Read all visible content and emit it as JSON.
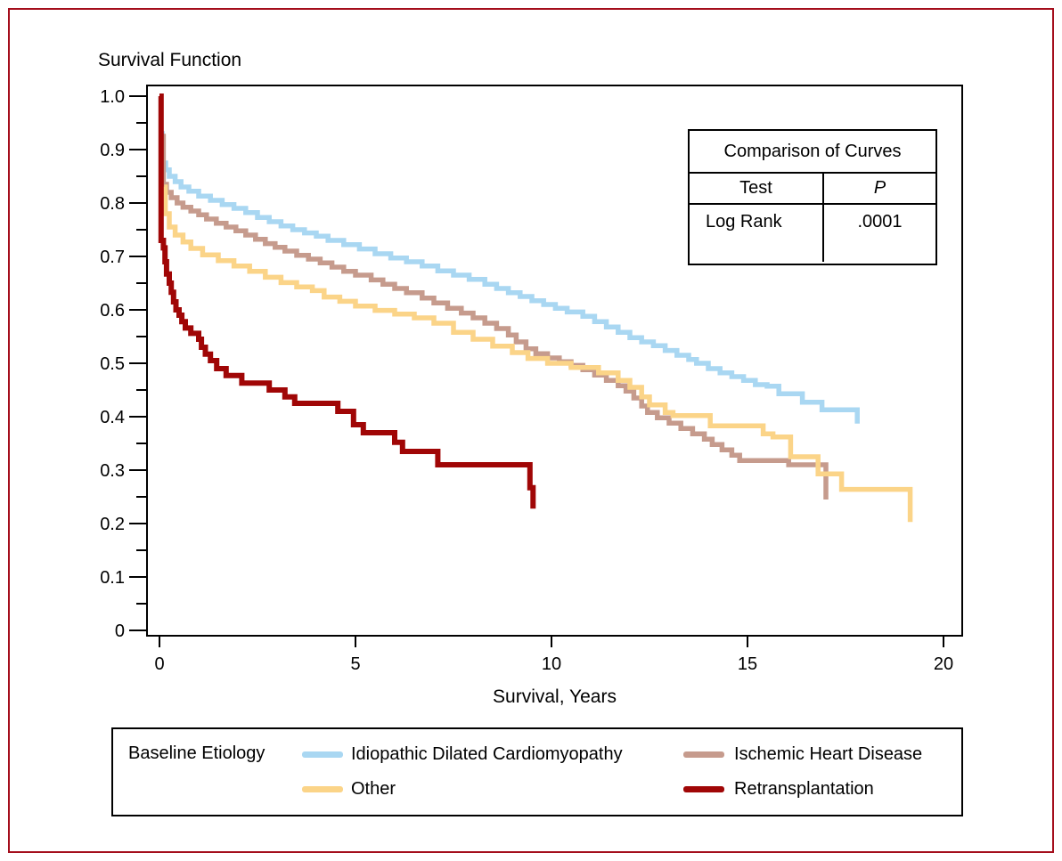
{
  "chart_data": {
    "type": "line",
    "subtype": "kaplan-meier-step",
    "title": "Survival Function",
    "xlabel": "Survival, Years",
    "ylabel": "",
    "xlim": [
      0,
      20.4
    ],
    "ylim": [
      0,
      1.0
    ],
    "grid": false,
    "x_ticks": [
      {
        "v": 0,
        "t": "0"
      },
      {
        "v": 5,
        "t": "5"
      },
      {
        "v": 10,
        "t": "10"
      },
      {
        "v": 15,
        "t": "15"
      },
      {
        "v": 20,
        "t": "20"
      }
    ],
    "y_ticks": [
      {
        "v": 1.0,
        "t": "1.0"
      },
      {
        "v": 0.9,
        "t": "0.9"
      },
      {
        "v": 0.8,
        "t": "0.8"
      },
      {
        "v": 0.7,
        "t": "0.7"
      },
      {
        "v": 0.6,
        "t": "0.6"
      },
      {
        "v": 0.5,
        "t": "0.5"
      },
      {
        "v": 0.4,
        "t": "0.4"
      },
      {
        "v": 0.3,
        "t": "0.3"
      },
      {
        "v": 0.2,
        "t": "0.2"
      },
      {
        "v": 0.1,
        "t": "0.1"
      },
      {
        "v": 0,
        "t": "0"
      }
    ],
    "y_minor_tick_step": 0.05,
    "legend_position": "bottom",
    "series": [
      {
        "id": "idiopathic-dilated-cardiomyopathy",
        "name": "Idiopathic Dilated Cardiomyopathy",
        "color": "#a9d7f2",
        "stroke_width": 5.5,
        "points": [
          [
            0.05,
            0.93
          ],
          [
            0.07,
            0.875
          ],
          [
            0.16,
            0.862
          ],
          [
            0.25,
            0.85
          ],
          [
            0.4,
            0.84
          ],
          [
            0.55,
            0.83
          ],
          [
            0.75,
            0.822
          ],
          [
            1.0,
            0.813
          ],
          [
            1.3,
            0.805
          ],
          [
            1.6,
            0.797
          ],
          [
            1.9,
            0.79
          ],
          [
            2.2,
            0.782
          ],
          [
            2.5,
            0.773
          ],
          [
            2.8,
            0.765
          ],
          [
            3.1,
            0.757
          ],
          [
            3.4,
            0.75
          ],
          [
            3.7,
            0.744
          ],
          [
            4.0,
            0.738
          ],
          [
            4.3,
            0.73
          ],
          [
            4.7,
            0.722
          ],
          [
            5.1,
            0.714
          ],
          [
            5.5,
            0.705
          ],
          [
            5.9,
            0.697
          ],
          [
            6.3,
            0.69
          ],
          [
            6.7,
            0.682
          ],
          [
            7.1,
            0.673
          ],
          [
            7.5,
            0.665
          ],
          [
            7.9,
            0.657
          ],
          [
            8.3,
            0.648
          ],
          [
            8.6,
            0.64
          ],
          [
            8.9,
            0.632
          ],
          [
            9.2,
            0.625
          ],
          [
            9.5,
            0.617
          ],
          [
            9.8,
            0.61
          ],
          [
            10.1,
            0.603
          ],
          [
            10.4,
            0.596
          ],
          [
            10.8,
            0.588
          ],
          [
            11.1,
            0.578
          ],
          [
            11.4,
            0.568
          ],
          [
            11.7,
            0.558
          ],
          [
            12.0,
            0.548
          ],
          [
            12.3,
            0.54
          ],
          [
            12.6,
            0.533
          ],
          [
            12.9,
            0.524
          ],
          [
            13.2,
            0.515
          ],
          [
            13.5,
            0.507
          ],
          [
            13.7,
            0.5
          ],
          [
            14.0,
            0.49
          ],
          [
            14.3,
            0.482
          ],
          [
            14.6,
            0.475
          ],
          [
            14.9,
            0.468
          ],
          [
            15.2,
            0.46
          ],
          [
            15.5,
            0.457
          ],
          [
            15.8,
            0.443
          ],
          [
            16.4,
            0.427
          ],
          [
            16.9,
            0.413
          ],
          [
            17.8,
            0.387
          ]
        ]
      },
      {
        "id": "ischemic-heart-disease",
        "name": "Ischemic Heart Disease",
        "color": "#c69b8d",
        "stroke_width": 5.5,
        "points": [
          [
            0.08,
            0.925
          ],
          [
            0.1,
            0.835
          ],
          [
            0.18,
            0.82
          ],
          [
            0.3,
            0.81
          ],
          [
            0.45,
            0.8
          ],
          [
            0.6,
            0.792
          ],
          [
            0.8,
            0.785
          ],
          [
            1.0,
            0.778
          ],
          [
            1.2,
            0.77
          ],
          [
            1.45,
            0.762
          ],
          [
            1.7,
            0.755
          ],
          [
            1.95,
            0.748
          ],
          [
            2.2,
            0.74
          ],
          [
            2.45,
            0.732
          ],
          [
            2.7,
            0.724
          ],
          [
            2.95,
            0.717
          ],
          [
            3.2,
            0.71
          ],
          [
            3.5,
            0.702
          ],
          [
            3.8,
            0.695
          ],
          [
            4.1,
            0.688
          ],
          [
            4.4,
            0.68
          ],
          [
            4.7,
            0.672
          ],
          [
            5.0,
            0.665
          ],
          [
            5.4,
            0.656
          ],
          [
            5.7,
            0.648
          ],
          [
            6.0,
            0.64
          ],
          [
            6.3,
            0.632
          ],
          [
            6.7,
            0.622
          ],
          [
            7.0,
            0.613
          ],
          [
            7.35,
            0.603
          ],
          [
            7.7,
            0.594
          ],
          [
            8.0,
            0.585
          ],
          [
            8.3,
            0.575
          ],
          [
            8.6,
            0.565
          ],
          [
            8.9,
            0.553
          ],
          [
            9.1,
            0.54
          ],
          [
            9.35,
            0.527
          ],
          [
            9.6,
            0.518
          ],
          [
            9.9,
            0.51
          ],
          [
            10.2,
            0.503
          ],
          [
            10.5,
            0.496
          ],
          [
            10.8,
            0.488
          ],
          [
            11.1,
            0.478
          ],
          [
            11.4,
            0.468
          ],
          [
            11.7,
            0.458
          ],
          [
            11.9,
            0.448
          ],
          [
            12.1,
            0.435
          ],
          [
            12.3,
            0.42
          ],
          [
            12.45,
            0.408
          ],
          [
            12.7,
            0.398
          ],
          [
            13.0,
            0.388
          ],
          [
            13.3,
            0.378
          ],
          [
            13.6,
            0.368
          ],
          [
            13.9,
            0.358
          ],
          [
            14.1,
            0.348
          ],
          [
            14.35,
            0.338
          ],
          [
            14.6,
            0.328
          ],
          [
            14.8,
            0.318
          ],
          [
            16.05,
            0.31
          ],
          [
            17.0,
            0.245
          ]
        ]
      },
      {
        "id": "other",
        "name": "Other",
        "color": "#fbd488",
        "stroke_width": 5.5,
        "points": [
          [
            0.12,
            0.83
          ],
          [
            0.15,
            0.78
          ],
          [
            0.25,
            0.755
          ],
          [
            0.4,
            0.74
          ],
          [
            0.6,
            0.727
          ],
          [
            0.8,
            0.715
          ],
          [
            1.1,
            0.703
          ],
          [
            1.5,
            0.692
          ],
          [
            1.9,
            0.682
          ],
          [
            2.3,
            0.672
          ],
          [
            2.7,
            0.661
          ],
          [
            3.1,
            0.651
          ],
          [
            3.5,
            0.643
          ],
          [
            3.9,
            0.636
          ],
          [
            4.2,
            0.624
          ],
          [
            4.6,
            0.616
          ],
          [
            5.0,
            0.607
          ],
          [
            5.5,
            0.599
          ],
          [
            6.0,
            0.592
          ],
          [
            6.5,
            0.585
          ],
          [
            7.0,
            0.575
          ],
          [
            7.5,
            0.558
          ],
          [
            8.0,
            0.545
          ],
          [
            8.5,
            0.532
          ],
          [
            9.0,
            0.52
          ],
          [
            9.4,
            0.509
          ],
          [
            9.9,
            0.5
          ],
          [
            10.5,
            0.492
          ],
          [
            11.2,
            0.482
          ],
          [
            11.7,
            0.468
          ],
          [
            12.0,
            0.455
          ],
          [
            12.3,
            0.437
          ],
          [
            12.5,
            0.422
          ],
          [
            12.9,
            0.408
          ],
          [
            13.1,
            0.402
          ],
          [
            14.05,
            0.383
          ],
          [
            15.4,
            0.368
          ],
          [
            15.65,
            0.362
          ],
          [
            16.1,
            0.325
          ],
          [
            16.8,
            0.293
          ],
          [
            17.4,
            0.264
          ],
          [
            19.15,
            0.203
          ]
        ]
      },
      {
        "id": "retransplantation",
        "name": "Retransplantation",
        "color": "#a00606",
        "stroke_width": 6,
        "points": [
          [
            0.0,
            1.0
          ],
          [
            0.04,
            0.73
          ],
          [
            0.1,
            0.716
          ],
          [
            0.14,
            0.69
          ],
          [
            0.18,
            0.667
          ],
          [
            0.25,
            0.65
          ],
          [
            0.3,
            0.633
          ],
          [
            0.36,
            0.615
          ],
          [
            0.42,
            0.6
          ],
          [
            0.5,
            0.59
          ],
          [
            0.57,
            0.578
          ],
          [
            0.66,
            0.566
          ],
          [
            0.8,
            0.556
          ],
          [
            1.0,
            0.545
          ],
          [
            1.07,
            0.53
          ],
          [
            1.17,
            0.517
          ],
          [
            1.3,
            0.505
          ],
          [
            1.46,
            0.49
          ],
          [
            1.7,
            0.477
          ],
          [
            2.1,
            0.463
          ],
          [
            2.8,
            0.45
          ],
          [
            3.2,
            0.437
          ],
          [
            3.45,
            0.425
          ],
          [
            4.55,
            0.41
          ],
          [
            4.95,
            0.385
          ],
          [
            5.2,
            0.37
          ],
          [
            6.0,
            0.352
          ],
          [
            6.2,
            0.335
          ],
          [
            7.1,
            0.31
          ],
          [
            9.45,
            0.267
          ],
          [
            9.53,
            0.228
          ]
        ]
      }
    ]
  },
  "comparison_table": {
    "title": "Comparison of Curves",
    "col_test": "Test",
    "col_p": "P",
    "rows": [
      {
        "test": "Log Rank",
        "p": ".0001"
      }
    ]
  },
  "legend": {
    "title": "Baseline Etiology"
  },
  "frame_color": "#a40e1c"
}
